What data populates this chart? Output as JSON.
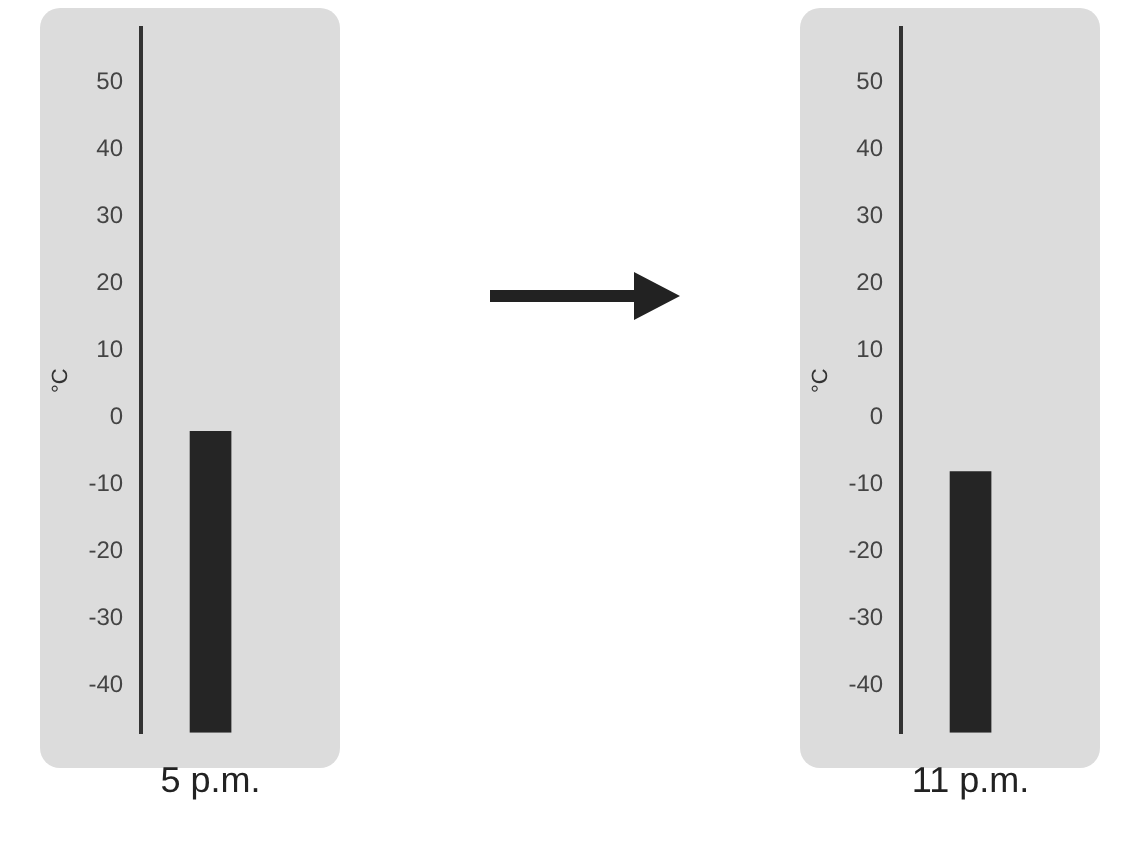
{
  "chart_data": [
    {
      "type": "bar",
      "categories": [
        "5 p.m."
      ],
      "base": [
        -47
      ],
      "values": [
        45
      ],
      "color": "#252525",
      "ylabel": "°C",
      "ylim": [
        -47,
        58
      ],
      "yticks": [
        -40,
        -30,
        -20,
        -10,
        0,
        10,
        20,
        30,
        40,
        50
      ],
      "grid": false
    },
    {
      "type": "bar",
      "categories": [
        "11 p.m."
      ],
      "base": [
        -47
      ],
      "values": [
        39
      ],
      "color": "#252525",
      "ylabel": "°C",
      "ylim": [
        -47,
        58
      ],
      "yticks": [
        -40,
        -30,
        -20,
        -10,
        0,
        10,
        20,
        30,
        40,
        50
      ],
      "grid": false
    }
  ]
}
